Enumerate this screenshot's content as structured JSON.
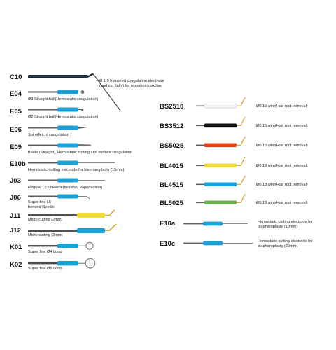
{
  "colors": {
    "blue": "#1aa1d6",
    "yellow": "#f1dc3a",
    "red": "#e0451e",
    "green": "#6bb04c",
    "black": "#111111",
    "white_sleeve": "#f4f4f4",
    "gold_tip": "#d9a531",
    "steel": "#5a6064"
  },
  "left": [
    {
      "code": "C10",
      "desc": [
        "Ø 1.0 Insulated coagulation electrode",
        "(end cut flatly) for osmidrosis axillae"
      ]
    },
    {
      "code": "E04",
      "desc": [
        "Ø3 Straight ball(Hemostatic coagulation)"
      ]
    },
    {
      "code": "E05",
      "desc": [
        "Ø2 Straight ball(Hemostatic coagulation)"
      ]
    },
    {
      "code": "E06",
      "desc": [
        "Spire(Micro coagulation )"
      ]
    },
    {
      "code": "E09",
      "desc": [
        "Blade (Straight), Hemostatic cutting and surface coagulation"
      ]
    },
    {
      "code": "E10b",
      "desc": [
        "Hemostatic cutting electrode for blepharoplasty (15mm)"
      ]
    },
    {
      "code": "J03",
      "desc": [
        "Regular L15 Needle(Incision, Vaporization)"
      ]
    },
    {
      "code": "J06",
      "desc": [
        "Super fine L5",
        "bended Needle"
      ]
    },
    {
      "code": "J11",
      "desc": [
        "Micro cutting (2mm)"
      ]
    },
    {
      "code": "J12",
      "desc": [
        "Micro cutting (3mm)"
      ]
    },
    {
      "code": "K01",
      "desc": [
        "Super fine Ø4 Loop"
      ]
    },
    {
      "code": "K02",
      "desc": [
        "Super fine Ø6 Loop"
      ]
    }
  ],
  "right": [
    {
      "code": "BS2510",
      "desc": [
        "Ø0.15 wire(Hair root removal)"
      ],
      "sleeve": "white"
    },
    {
      "code": "BS3512",
      "desc": [
        "Ø0.15 wire(Hair root removal)"
      ],
      "sleeve": "black"
    },
    {
      "code": "BS5025",
      "desc": [
        "Ø0.15 wire(Hair root removal)"
      ],
      "sleeve": "red"
    },
    {
      "code": "BL4015",
      "desc": [
        "Ø0.18 wire(Hair root removal)"
      ],
      "sleeve": "yellow"
    },
    {
      "code": "BL4515",
      "desc": [
        "Ø0.18 wire(Hair root removal)"
      ],
      "sleeve": "blue"
    },
    {
      "code": "BL5025",
      "desc": [
        "Ø0.18 wire(Hair root removal)"
      ],
      "sleeve": "green"
    },
    {
      "code": "E10a",
      "desc": [
        "Hemostatic cutting electrode for",
        "blepharoplasty (10mm)"
      ]
    },
    {
      "code": "E10c",
      "desc": [
        "Hemostatic cutting electrode for",
        "blepharoplasty (20mm)"
      ]
    }
  ]
}
